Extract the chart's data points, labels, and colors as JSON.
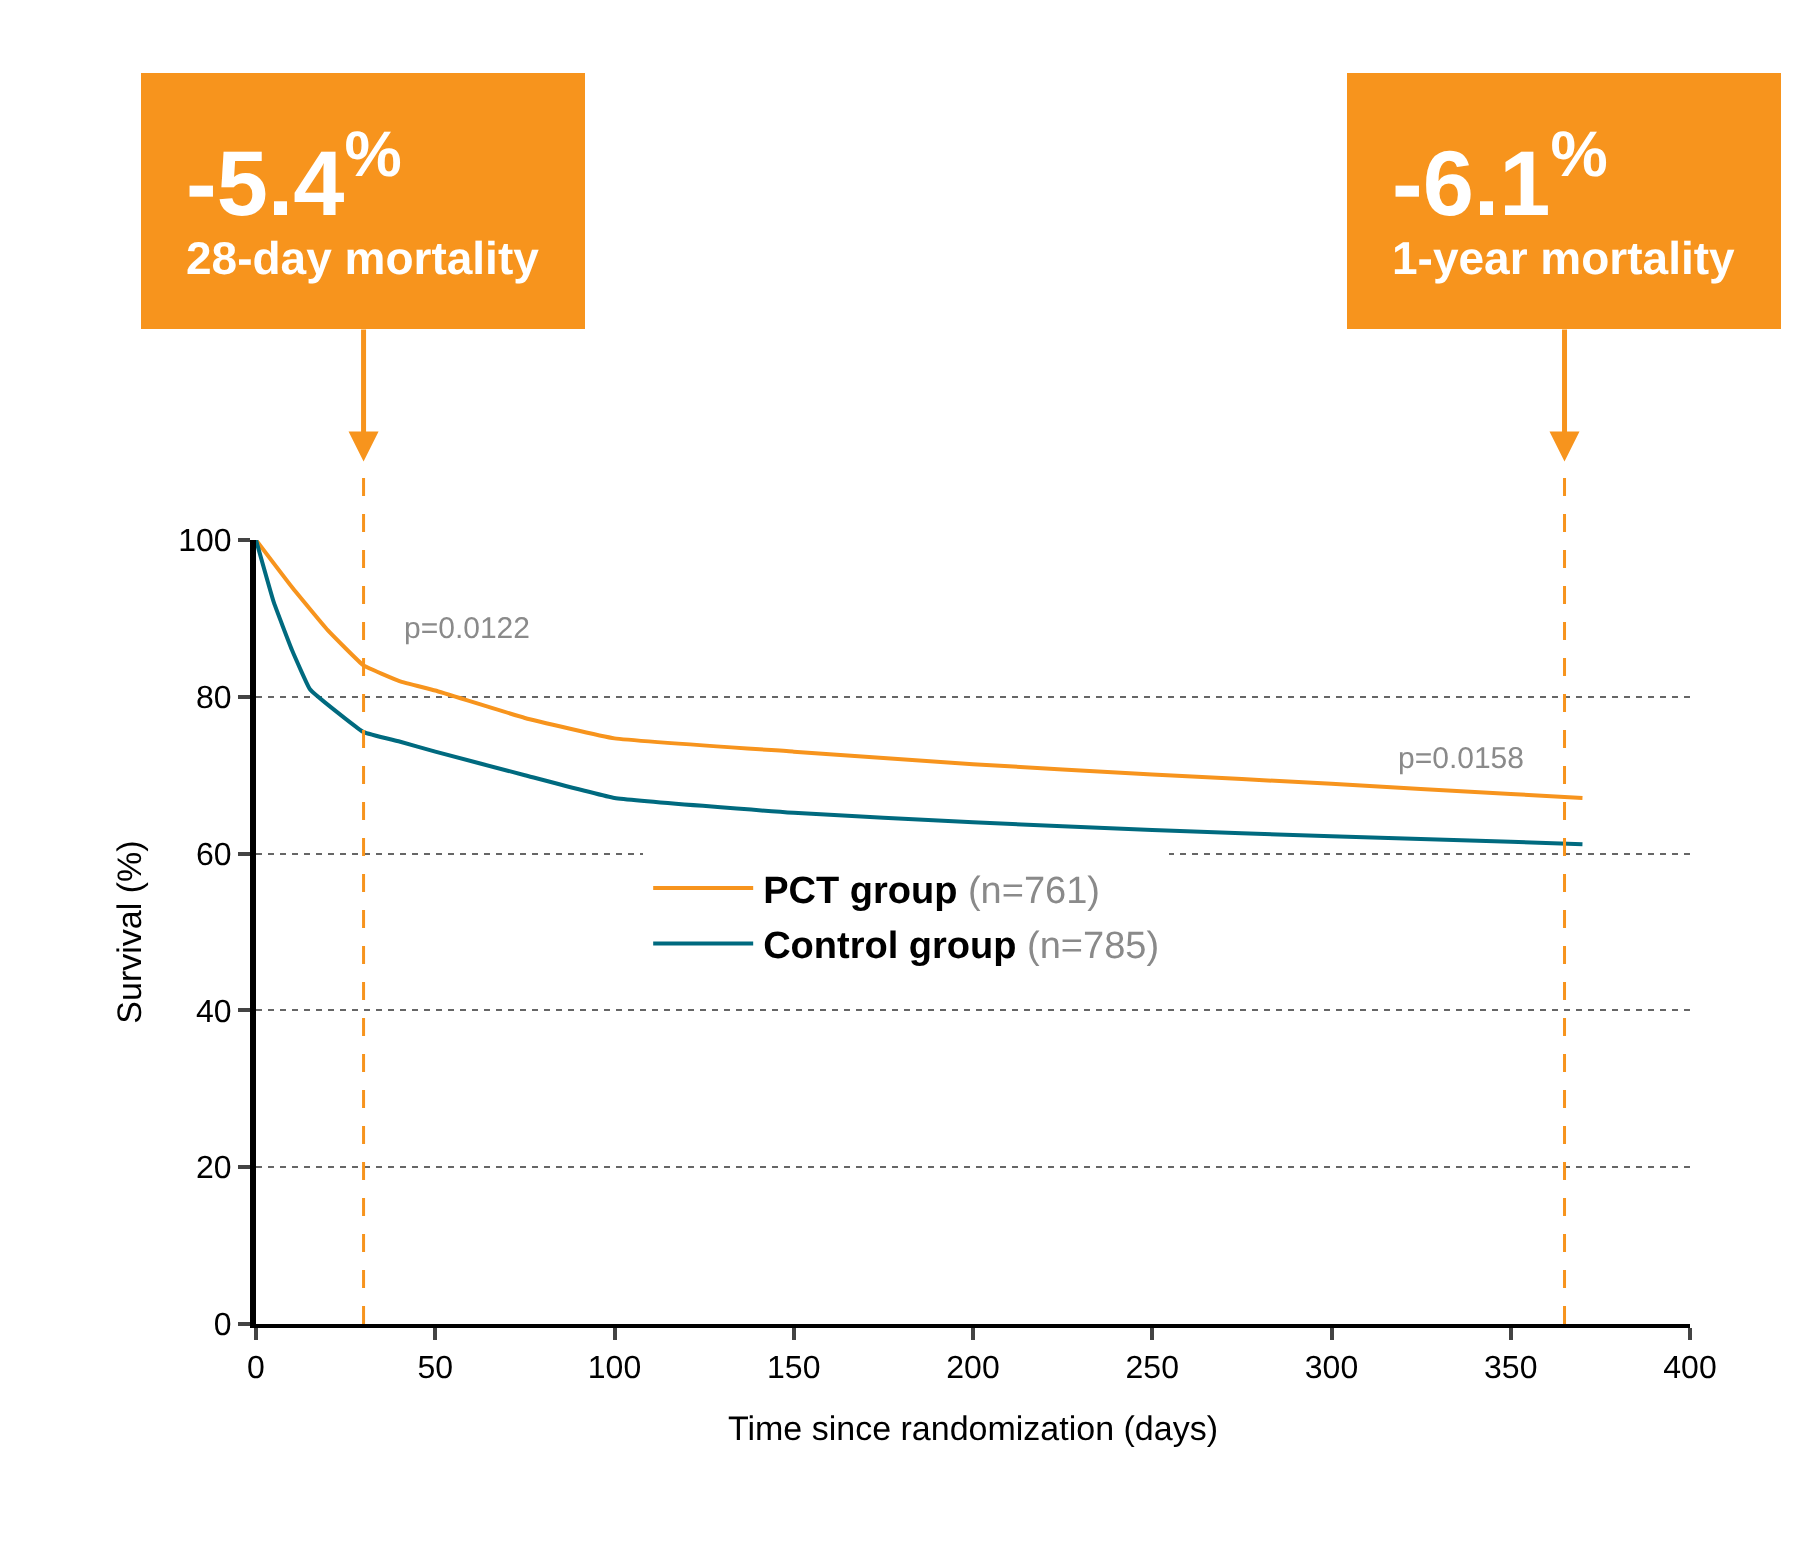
{
  "chart_data": {
    "type": "line",
    "xlabel": "Time since randomization (days)",
    "ylabel": "Survival (%)",
    "series": [
      {
        "name": "PCT group (n=761)",
        "color": "#f7941d",
        "x": [
          0,
          10,
          20,
          30,
          40,
          50,
          75,
          100,
          150,
          200,
          250,
          300,
          350,
          370
        ],
        "values": [
          100,
          94,
          88.5,
          84,
          82,
          80.8,
          77.3,
          74.7,
          73,
          71.4,
          70.1,
          68.9,
          67.6,
          67.1
        ]
      },
      {
        "name": "Control group (n=785)",
        "color": "#006a7f",
        "x": [
          0,
          5,
          10,
          15,
          20,
          30,
          40,
          50,
          75,
          100,
          150,
          200,
          250,
          300,
          350,
          370
        ],
        "values": [
          100,
          92,
          86,
          81,
          79,
          75.5,
          74.3,
          73,
          70,
          67.1,
          65.2,
          64,
          63,
          62.2,
          61.5,
          61.2
        ]
      }
    ],
    "xlim": [
      0,
      400
    ],
    "xticks": [
      0,
      50,
      100,
      150,
      200,
      250,
      300,
      350,
      400
    ],
    "ylim": [
      0,
      100
    ],
    "yticks": [
      0,
      20,
      40,
      60,
      80,
      100
    ],
    "grid": "y",
    "legend": "center",
    "marker": "none",
    "line_style": "solid",
    "ref_lines": [
      {
        "axis": "x",
        "value": 30,
        "label": "-5.4$^{%}$\n28-day mortality",
        "color": "#f7941d",
        "line_style": "dashed"
      },
      {
        "axis": "x",
        "value": 365,
        "label": "-6.1$^{%}$\n1-year mortality",
        "color": "#f7941d",
        "line_style": "dashed"
      }
    ],
    "annotations": [
      "p=0.0122",
      "p=0.0158"
    ]
  }
}
